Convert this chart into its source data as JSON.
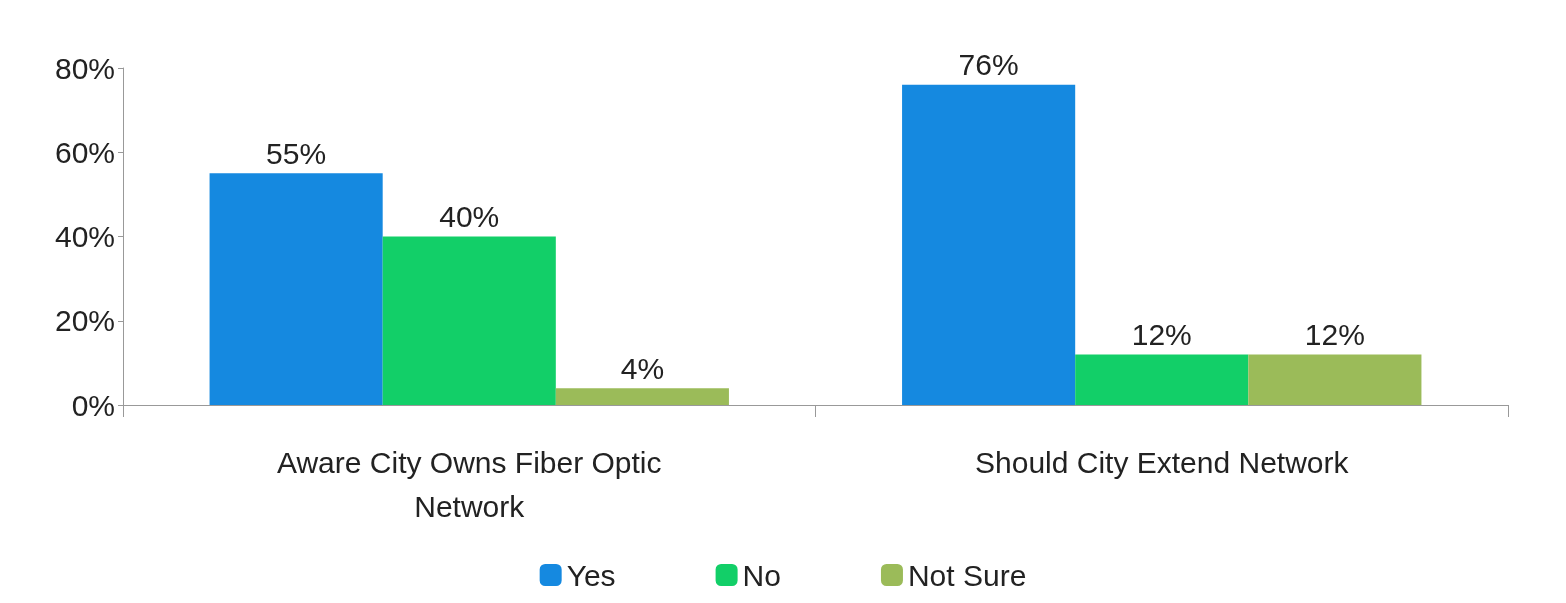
{
  "chart_data": {
    "type": "bar",
    "categories": [
      "Aware City Owns Fiber Optic Network",
      "Should City Extend Network"
    ],
    "series": [
      {
        "name": "Yes",
        "color": "#1589e0",
        "values": [
          55,
          76
        ],
        "value_labels": [
          "55%",
          "76%"
        ]
      },
      {
        "name": "No",
        "color": "#12cf68",
        "values": [
          40,
          12
        ],
        "value_labels": [
          "40%",
          "12%"
        ]
      },
      {
        "name": "Not Sure",
        "color": "#9bbb59",
        "values": [
          4,
          12
        ],
        "value_labels": [
          "4%",
          "12%"
        ]
      }
    ],
    "ylim": [
      0,
      80
    ],
    "yticks": [
      {
        "value": 0,
        "label": "0%"
      },
      {
        "value": 20,
        "label": "20%"
      },
      {
        "value": 40,
        "label": "40%"
      },
      {
        "value": 60,
        "label": "60%"
      },
      {
        "value": 80,
        "label": "80%"
      }
    ],
    "grid": false,
    "legend": "bottom"
  }
}
